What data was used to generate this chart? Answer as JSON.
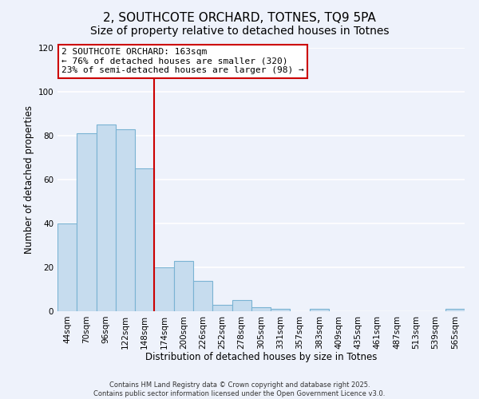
{
  "title": "2, SOUTHCOTE ORCHARD, TOTNES, TQ9 5PA",
  "subtitle": "Size of property relative to detached houses in Totnes",
  "xlabel": "Distribution of detached houses by size in Totnes",
  "ylabel": "Number of detached properties",
  "categories": [
    "44sqm",
    "70sqm",
    "96sqm",
    "122sqm",
    "148sqm",
    "174sqm",
    "200sqm",
    "226sqm",
    "252sqm",
    "278sqm",
    "305sqm",
    "331sqm",
    "357sqm",
    "383sqm",
    "409sqm",
    "435sqm",
    "461sqm",
    "487sqm",
    "513sqm",
    "539sqm",
    "565sqm"
  ],
  "values": [
    40,
    81,
    85,
    83,
    65,
    20,
    23,
    14,
    3,
    5,
    2,
    1,
    0,
    1,
    0,
    0,
    0,
    0,
    0,
    0,
    1
  ],
  "bar_color": "#c6dcee",
  "bar_edgecolor": "#7ab3d3",
  "vline_x": 4.5,
  "vline_color": "#cc0000",
  "annotation_text": "2 SOUTHCOTE ORCHARD: 163sqm\n← 76% of detached houses are smaller (320)\n23% of semi-detached houses are larger (98) →",
  "annotation_box_color": "#ffffff",
  "annotation_box_edgecolor": "#cc0000",
  "ylim": [
    0,
    120
  ],
  "yticks": [
    0,
    20,
    40,
    60,
    80,
    100,
    120
  ],
  "footer1": "Contains HM Land Registry data © Crown copyright and database right 2025.",
  "footer2": "Contains public sector information licensed under the Open Government Licence v3.0.",
  "background_color": "#eef2fb",
  "grid_color": "#ffffff",
  "title_fontsize": 11,
  "label_fontsize": 8.5,
  "tick_fontsize": 7.5,
  "annotation_fontsize": 8
}
